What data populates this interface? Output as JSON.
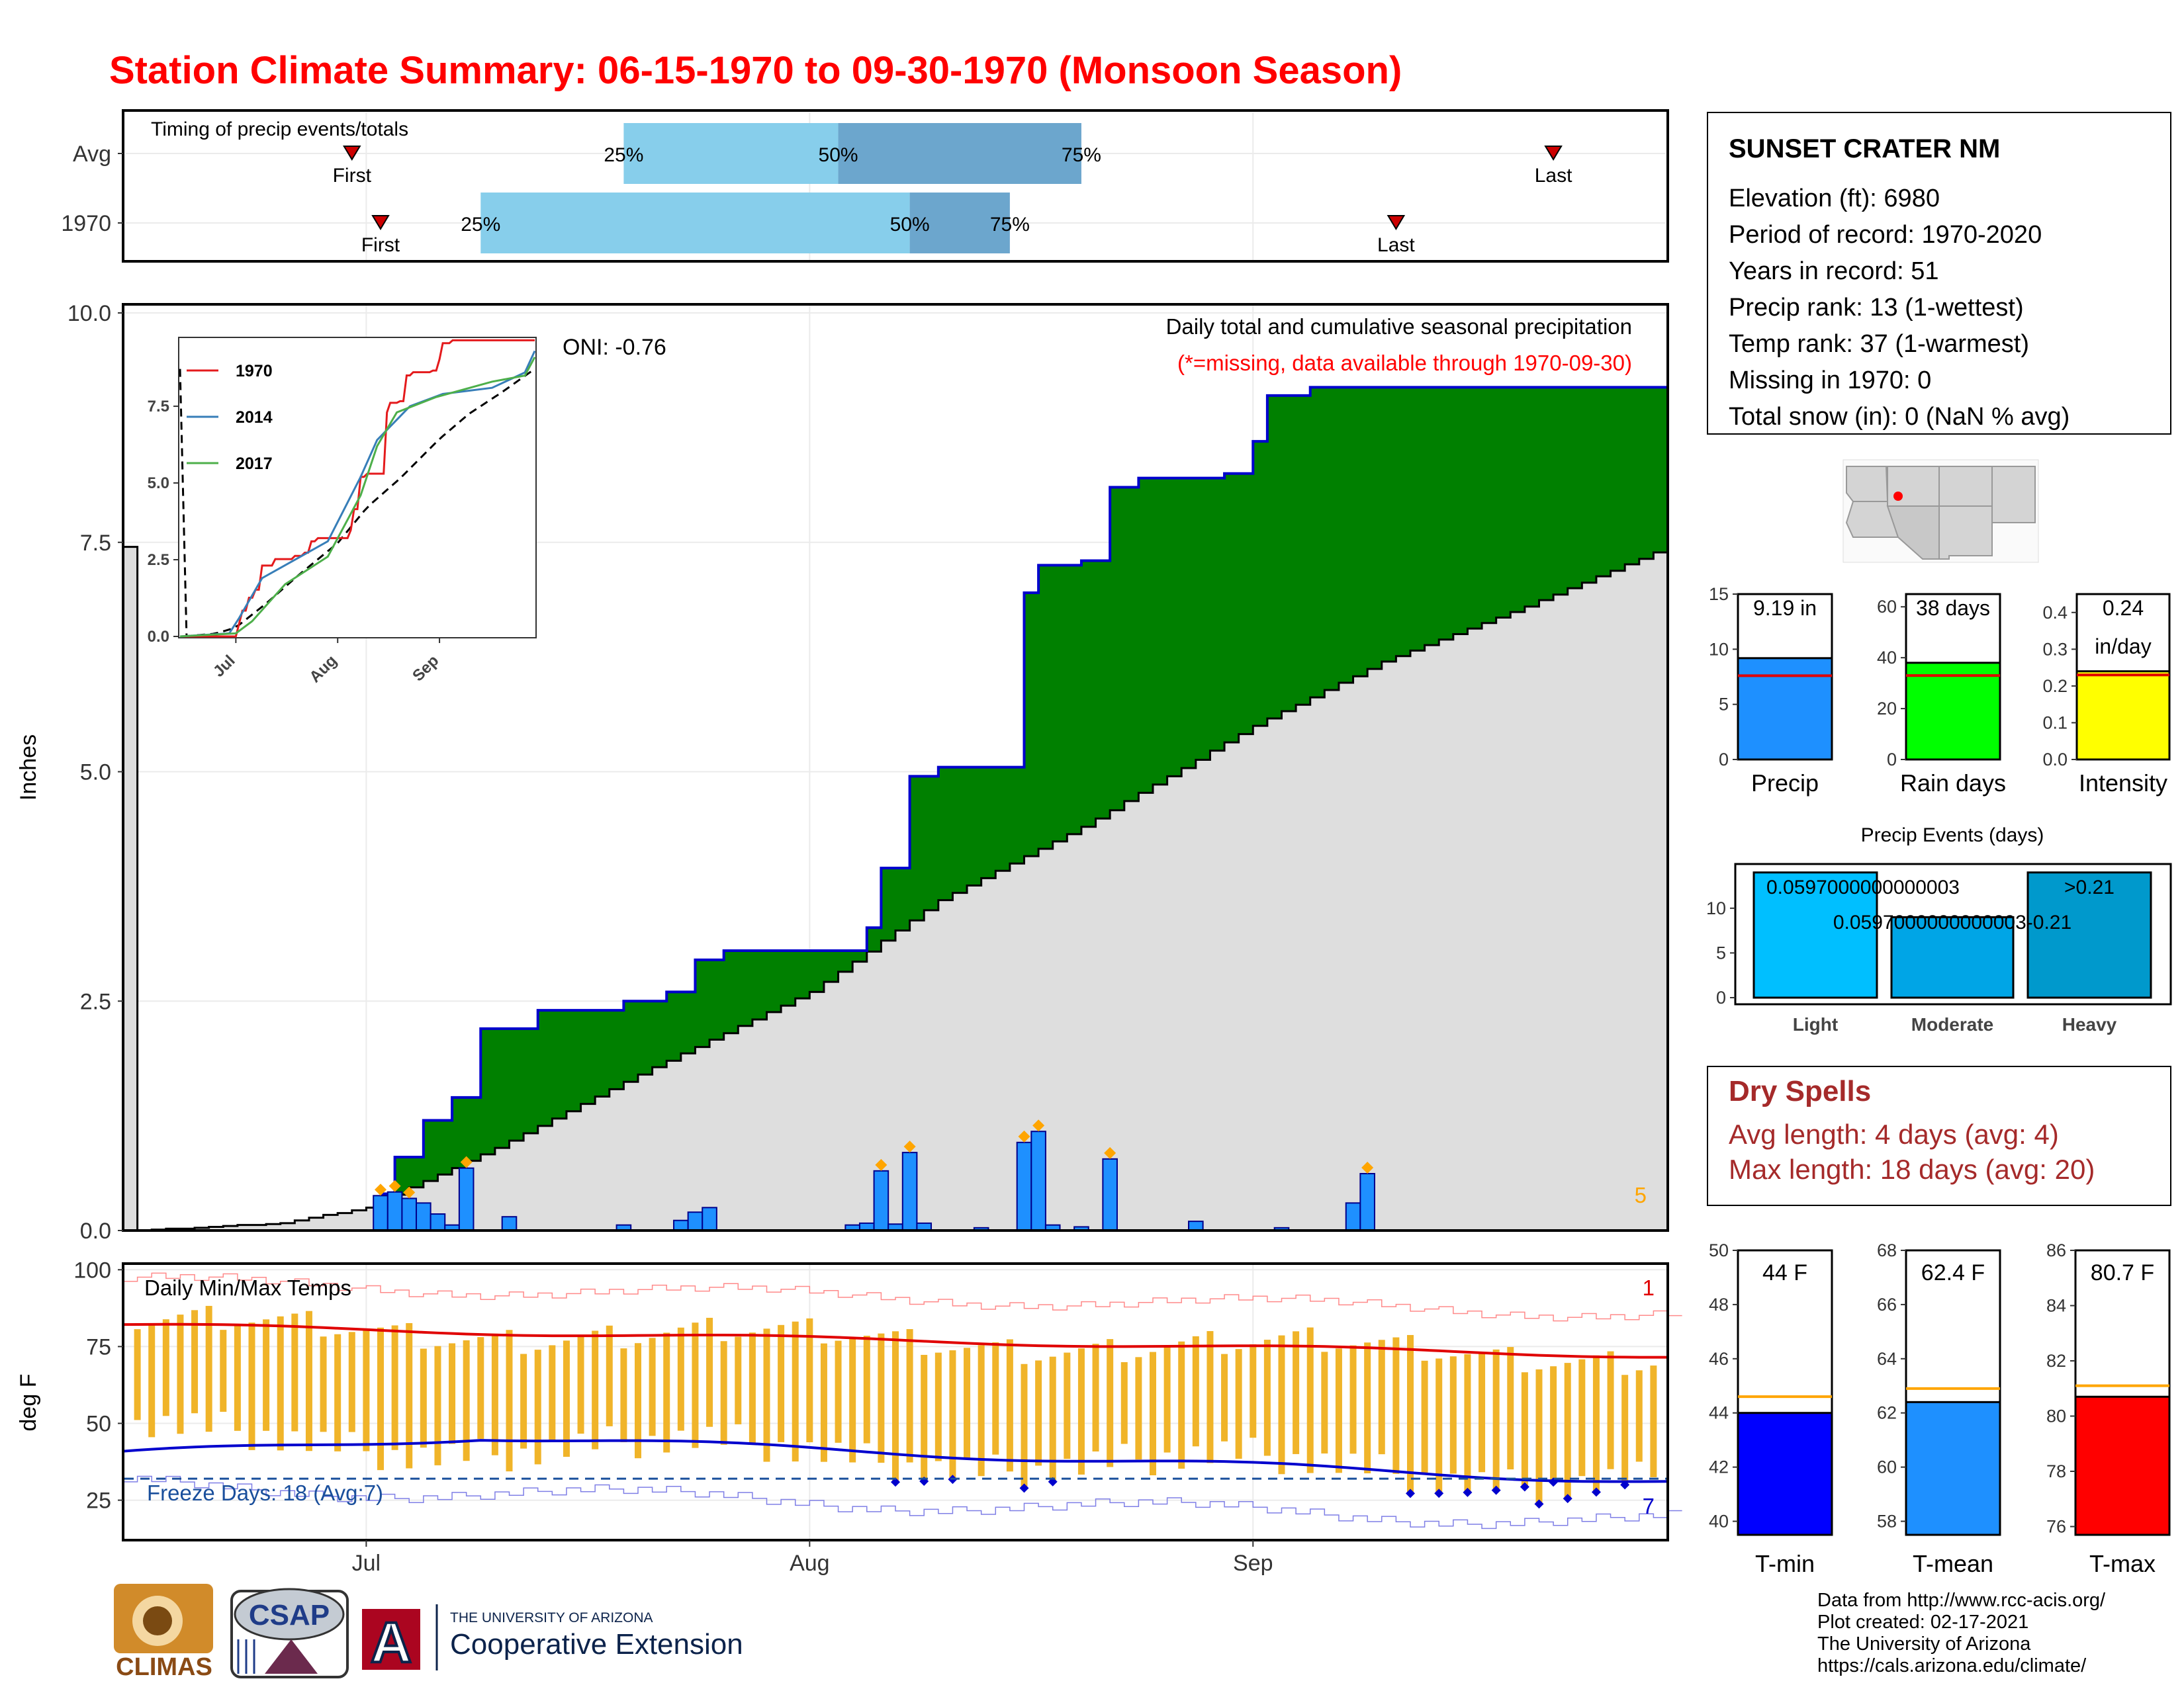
{
  "title": "Station Climate Summary: 06-15-1970 to 09-30-1970 (Monsoon Season)",
  "timing": {
    "panel_label": "Timing of precip events/totals",
    "rows": [
      {
        "label": "Avg",
        "first": "First",
        "last": "Last",
        "p25": "25%",
        "p50": "50%",
        "p75": "75%",
        "first_date": "1970-06-30",
        "q25_date": "1970-07-19",
        "q50_date": "1970-08-03",
        "q75_date": "1970-08-20",
        "last_date": "1970-09-22"
      },
      {
        "label": "1970",
        "first": "First",
        "last": "Last",
        "p25": "25%",
        "p50": "50%",
        "p75": "75%",
        "first_date": "1970-07-02",
        "q25_date": "1970-07-09",
        "q50_date": "1970-08-08",
        "q75_date": "1970-08-15",
        "last_date": "1970-09-11"
      }
    ]
  },
  "precip": {
    "ylabel": "Inches",
    "yticks": [
      "0.0",
      "2.5",
      "5.0",
      "7.5",
      "10.0"
    ],
    "ylim": [
      0,
      10
    ],
    "xticks": [
      "Jul",
      "Aug",
      "Sep"
    ],
    "annotation_title": "Daily total and cumulative seasonal precipitation",
    "annotation_missing": "(*=missing, data available through 1970-09-30)",
    "corner_count": "5",
    "oni": "ONI: -0.76",
    "colors": {
      "above_avg": "#008000",
      "below_avg": "#8b5a00",
      "avg_fill": "#dedede",
      "cum_line": "#0000cd",
      "daily_bar": "#1e90ff",
      "marker": "#ffa500"
    }
  },
  "inset": {
    "yticks": [
      "0.0",
      "2.5",
      "5.0",
      "7.5"
    ],
    "xticks": [
      "Jul",
      "Aug",
      "Sep"
    ],
    "legend": [
      {
        "name": "1970",
        "color": "#e41a1c"
      },
      {
        "name": "2014",
        "color": "#377eb8"
      },
      {
        "name": "2017",
        "color": "#4daf4a"
      }
    ]
  },
  "temps": {
    "ylabel": "deg F",
    "yticks": [
      "25",
      "50",
      "75",
      "100"
    ],
    "ylim": [
      12,
      102
    ],
    "panel_label": "Daily Min/Max Temps",
    "freeze_label": "Freeze Days: 18 (Avg:7)",
    "count_hot": "1",
    "count_cold": "7",
    "freeze_line": 32,
    "colors": {
      "bars": "#f0b429",
      "tmax": "#e00000",
      "tmin": "#0000cd",
      "freeze": "#1a4f9c"
    }
  },
  "station": {
    "name": "SUNSET CRATER NM",
    "lines": [
      "Elevation (ft): 6980",
      "Period of record: 1970-2020",
      "Years in record: 51",
      "Precip rank: 13 (1-wettest)",
      "Temp rank: 37 (1-warmest)",
      "Missing in 1970: 0",
      "Total snow (in): 0 (NaN % avg)"
    ]
  },
  "summary_bars": [
    {
      "label": "Precip",
      "value_text": "9.19 in",
      "value": 9.19,
      "avg": 7.6,
      "ymax": 15,
      "yticks": [
        "0",
        "5",
        "10",
        "15"
      ],
      "color": "#1e90ff"
    },
    {
      "label": "Rain days",
      "value_text": "38 days",
      "value": 38,
      "avg": 33,
      "ymax": 65,
      "yticks": [
        "0",
        "20",
        "40",
        "60"
      ],
      "color": "#00ff00"
    },
    {
      "label": "Intensity",
      "value_text": "0.24",
      "value_text2": "in/day",
      "value": 0.24,
      "avg": 0.23,
      "ymax": 0.45,
      "yticks": [
        "0.0",
        "0.1",
        "0.2",
        "0.3",
        "0.4"
      ],
      "color": "#ffff00"
    }
  ],
  "events": {
    "title": "Precip Events (days)",
    "categories": [
      "Light",
      "Moderate",
      "Heavy"
    ],
    "values": [
      14,
      9,
      14
    ],
    "yticks": [
      "0",
      "5",
      "10"
    ],
    "labels": [
      "0.0597000000000003",
      "0.0597000000000003-0.21",
      ">0.21"
    ],
    "colors": [
      "#00bfff",
      "#00a5e6",
      "#0099cc"
    ]
  },
  "dry": {
    "title": "Dry Spells",
    "avg": "Avg length: 4 days (avg: 4)",
    "max": "Max length: 18 days (avg: 20)"
  },
  "temp_bars": [
    {
      "label": "T-min",
      "value_text": "44 F",
      "value": 44.0,
      "avg": 44.6,
      "ymin": 39.5,
      "ymax": 50,
      "yticks": [
        "40",
        "42",
        "44",
        "46",
        "48",
        "50"
      ],
      "color": "#0000ff"
    },
    {
      "label": "T-mean",
      "value_text": "62.4 F",
      "value": 62.4,
      "avg": 62.9,
      "ymin": 57.5,
      "ymax": 68,
      "yticks": [
        "58",
        "60",
        "62",
        "64",
        "66",
        "68"
      ],
      "color": "#1e90ff"
    },
    {
      "label": "T-max",
      "value_text": "80.7 F",
      "value": 80.7,
      "avg": 81.1,
      "ymin": 75.7,
      "ymax": 86,
      "yticks": [
        "76",
        "78",
        "80",
        "82",
        "84",
        "86"
      ],
      "color": "#ff0000"
    }
  ],
  "credits": [
    "Data from http://www.rcc-acis.org/",
    "Plot created: 02-17-2021",
    "The University of Arizona",
    "https://cals.arizona.edu/climate/"
  ],
  "logos": {
    "climas": "CLIMAS",
    "csap": "CSAP",
    "ua_small": "THE UNIVERSITY OF ARIZONA",
    "ua_big": "Cooperative Extension",
    "ua_letter": "A"
  },
  "chart_data": {
    "type": "area",
    "title": "Daily total and cumulative seasonal precipitation",
    "ylabel": "Inches",
    "ylim": [
      0,
      10
    ],
    "x_range": [
      "1970-06-15",
      "1970-09-30"
    ],
    "series": [
      {
        "name": "1970",
        "cumulative_points": [
          [
            "06-15",
            0
          ],
          [
            "07-02",
            0.4
          ],
          [
            "07-03",
            0.8
          ],
          [
            "07-05",
            1.2
          ],
          [
            "07-07",
            1.45
          ],
          [
            "07-09",
            2.2
          ],
          [
            "07-11",
            2.2
          ],
          [
            "07-13",
            2.4
          ],
          [
            "07-19",
            2.5
          ],
          [
            "07-22",
            2.6
          ],
          [
            "07-24",
            2.95
          ],
          [
            "07-26",
            3.05
          ],
          [
            "08-04",
            3.05
          ],
          [
            "08-05",
            3.3
          ],
          [
            "08-06",
            3.95
          ],
          [
            "08-08",
            4.95
          ],
          [
            "08-10",
            5.05
          ],
          [
            "08-15",
            5.05
          ],
          [
            "08-16",
            6.95
          ],
          [
            "08-17",
            7.25
          ],
          [
            "08-20",
            7.3
          ],
          [
            "08-22",
            8.1
          ],
          [
            "08-24",
            8.2
          ],
          [
            "08-30",
            8.25
          ],
          [
            "09-01",
            8.6
          ],
          [
            "09-02",
            9.1
          ],
          [
            "09-05",
            9.19
          ],
          [
            "09-30",
            9.19
          ]
        ]
      },
      {
        "name": "Average",
        "cumulative_points": [
          [
            "06-15",
            0
          ],
          [
            "06-25",
            0.08
          ],
          [
            "07-01",
            0.25
          ],
          [
            "07-10",
            0.9
          ],
          [
            "07-20",
            1.7
          ],
          [
            "08-01",
            2.6
          ],
          [
            "08-10",
            3.6
          ],
          [
            "08-20",
            4.4
          ],
          [
            "09-01",
            5.5
          ],
          [
            "09-10",
            6.2
          ],
          [
            "09-20",
            6.8
          ],
          [
            "09-30",
            7.45
          ]
        ]
      }
    ],
    "daily_precip": [
      [
        "07-02",
        0.38
      ],
      [
        "07-03",
        0.42
      ],
      [
        "07-04",
        0.35
      ],
      [
        "07-05",
        0.3
      ],
      [
        "07-06",
        0.18
      ],
      [
        "07-07",
        0.06
      ],
      [
        "07-08",
        0.68
      ],
      [
        "07-11",
        0.15
      ],
      [
        "07-19",
        0.06
      ],
      [
        "07-23",
        0.11
      ],
      [
        "07-24",
        0.2
      ],
      [
        "07-25",
        0.25
      ],
      [
        "08-04",
        0.06
      ],
      [
        "08-05",
        0.08
      ],
      [
        "08-06",
        0.65
      ],
      [
        "08-07",
        0.07
      ],
      [
        "08-08",
        0.85
      ],
      [
        "08-09",
        0.08
      ],
      [
        "08-13",
        0.03
      ],
      [
        "08-16",
        0.96
      ],
      [
        "08-17",
        1.08
      ],
      [
        "08-18",
        0.06
      ],
      [
        "08-20",
        0.04
      ],
      [
        "08-22",
        0.78
      ],
      [
        "08-28",
        0.1
      ],
      [
        "09-03",
        0.03
      ],
      [
        "09-08",
        0.3
      ],
      [
        "09-09",
        0.62
      ]
    ],
    "temperature": {
      "ylabel": "deg F",
      "ylim": [
        12,
        102
      ],
      "daily_min_avg_start": 40,
      "daily_min_avg_end": 34,
      "daily_max_avg_start": 82,
      "daily_max_avg_end": 72
    }
  }
}
